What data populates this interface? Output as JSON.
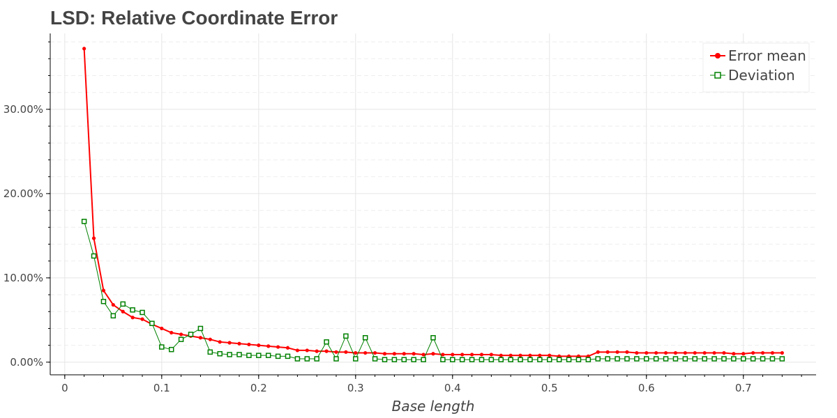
{
  "chart_data": {
    "type": "line",
    "title": "LSD: Relative Coordinate Error",
    "xlabel": "Base length",
    "ylabel": "",
    "xlim": [
      -0.015,
      0.775
    ],
    "ylim": [
      -0.015,
      0.39
    ],
    "x_ticks": [
      0,
      0.1,
      0.2,
      0.3,
      0.4,
      0.5,
      0.6,
      0.7
    ],
    "x_tick_labels": [
      "0",
      "0.1",
      "0.2",
      "0.3",
      "0.4",
      "0.5",
      "0.6",
      "0.7"
    ],
    "y_ticks": [
      0,
      0.1,
      0.2,
      0.3
    ],
    "y_tick_labels": [
      "0.00%",
      "10.00%",
      "20.00%",
      "30.00%"
    ],
    "grid": true,
    "legend_position": "top-right",
    "x": [
      0.02,
      0.03,
      0.04,
      0.05,
      0.06,
      0.07,
      0.08,
      0.09,
      0.1,
      0.11,
      0.12,
      0.13,
      0.14,
      0.15,
      0.16,
      0.17,
      0.18,
      0.19,
      0.2,
      0.21,
      0.22,
      0.23,
      0.24,
      0.25,
      0.26,
      0.27,
      0.28,
      0.29,
      0.3,
      0.31,
      0.32,
      0.33,
      0.34,
      0.35,
      0.36,
      0.37,
      0.38,
      0.39,
      0.4,
      0.41,
      0.42,
      0.43,
      0.44,
      0.45,
      0.46,
      0.47,
      0.48,
      0.49,
      0.5,
      0.51,
      0.52,
      0.53,
      0.54,
      0.55,
      0.56,
      0.57,
      0.58,
      0.59,
      0.6,
      0.61,
      0.62,
      0.63,
      0.64,
      0.65,
      0.66,
      0.67,
      0.68,
      0.69,
      0.7,
      0.71,
      0.72,
      0.73,
      0.74
    ],
    "series": [
      {
        "name": "Error mean",
        "color": "#ff0000",
        "marker": "circle",
        "values": [
          0.372,
          0.147,
          0.085,
          0.068,
          0.06,
          0.053,
          0.051,
          0.045,
          0.04,
          0.035,
          0.033,
          0.031,
          0.029,
          0.027,
          0.024,
          0.023,
          0.022,
          0.021,
          0.02,
          0.019,
          0.018,
          0.017,
          0.014,
          0.014,
          0.013,
          0.013,
          0.012,
          0.012,
          0.011,
          0.011,
          0.011,
          0.01,
          0.01,
          0.01,
          0.01,
          0.009,
          0.01,
          0.009,
          0.009,
          0.009,
          0.009,
          0.009,
          0.009,
          0.008,
          0.008,
          0.008,
          0.008,
          0.008,
          0.008,
          0.007,
          0.007,
          0.007,
          0.007,
          0.012,
          0.012,
          0.012,
          0.012,
          0.011,
          0.011,
          0.011,
          0.011,
          0.011,
          0.011,
          0.011,
          0.011,
          0.011,
          0.011,
          0.01,
          0.01,
          0.011,
          0.011,
          0.011,
          0.011
        ]
      },
      {
        "name": "Deviation",
        "color": "#008000",
        "marker": "square",
        "values": [
          0.167,
          0.126,
          0.072,
          0.055,
          0.069,
          0.062,
          0.059,
          0.046,
          0.018,
          0.015,
          0.027,
          0.033,
          0.04,
          0.012,
          0.01,
          0.009,
          0.009,
          0.008,
          0.008,
          0.008,
          0.007,
          0.007,
          0.004,
          0.004,
          0.004,
          0.024,
          0.004,
          0.031,
          0.004,
          0.029,
          0.004,
          0.003,
          0.003,
          0.003,
          0.003,
          0.003,
          0.029,
          0.003,
          0.003,
          0.003,
          0.003,
          0.003,
          0.003,
          0.003,
          0.003,
          0.003,
          0.003,
          0.003,
          0.003,
          0.003,
          0.003,
          0.003,
          0.003,
          0.004,
          0.004,
          0.004,
          0.004,
          0.004,
          0.004,
          0.004,
          0.004,
          0.004,
          0.004,
          0.004,
          0.004,
          0.004,
          0.004,
          0.004,
          0.004,
          0.004,
          0.004,
          0.004,
          0.004
        ]
      }
    ]
  }
}
